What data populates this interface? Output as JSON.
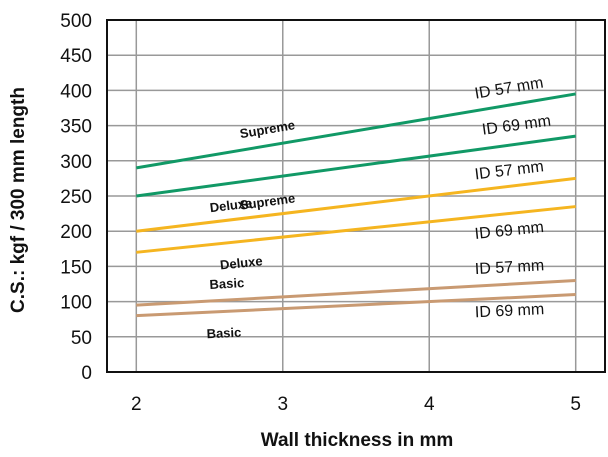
{
  "chart_data": {
    "type": "line",
    "title": "",
    "xlabel": "Wall thickness in mm",
    "ylabel": "C.S.: kgf / 300 mm length",
    "xlim": [
      1.8,
      5.2
    ],
    "ylim": [
      0,
      500
    ],
    "xticks": [
      2,
      3,
      4,
      5
    ],
    "yticks": [
      0,
      50,
      100,
      150,
      200,
      250,
      300,
      350,
      400,
      450,
      500
    ],
    "grid": true,
    "legend": "none",
    "colors": {
      "supreme": "#119966",
      "deluxe": "#f5b520",
      "basic": "#c99a72",
      "grid": "#999999"
    },
    "series": [
      {
        "name": "Supreme",
        "id_label": "ID 57 mm",
        "color_key": "supreme",
        "x": [
          2,
          5
        ],
        "y": [
          290,
          395
        ]
      },
      {
        "name": "Supreme",
        "id_label": "ID 69 mm",
        "color_key": "supreme",
        "x": [
          2,
          5
        ],
        "y": [
          250,
          335
        ]
      },
      {
        "name": "Deluxe",
        "id_label": "ID 57 mm",
        "color_key": "deluxe",
        "x": [
          2,
          5
        ],
        "y": [
          200,
          275
        ]
      },
      {
        "name": "Deluxe",
        "id_label": "ID 69 mm",
        "color_key": "deluxe",
        "x": [
          2,
          5
        ],
        "y": [
          170,
          235
        ]
      },
      {
        "name": "Basic",
        "id_label": "ID 57 mm",
        "color_key": "basic",
        "x": [
          2,
          5
        ],
        "y": [
          95,
          130
        ]
      },
      {
        "name": "Basic",
        "id_label": "ID 69 mm",
        "color_key": "basic",
        "x": [
          2,
          5
        ],
        "y": [
          80,
          110
        ]
      }
    ]
  }
}
